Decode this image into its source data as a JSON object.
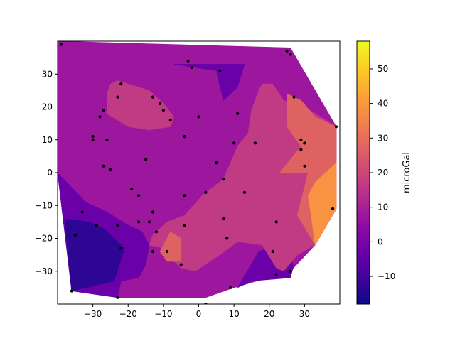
{
  "chart_data": {
    "type": "contourf",
    "title": "",
    "xlabel": "",
    "ylabel": "",
    "xlim": [
      -40,
      40
    ],
    "ylim": [
      -40,
      40
    ],
    "x_ticks": [
      -30,
      -20,
      -10,
      0,
      10,
      20,
      30
    ],
    "y_ticks": [
      -30,
      -20,
      -10,
      0,
      10,
      20,
      30
    ],
    "grid": false,
    "colormap": "plasma",
    "colorbar": {
      "label": "microGal",
      "range": [
        -18,
        58
      ],
      "ticks": [
        -10,
        0,
        10,
        20,
        30,
        40,
        50
      ]
    },
    "contour_levels": [
      -18,
      -10,
      0,
      10,
      20,
      30,
      40,
      50,
      58
    ],
    "level_colors": [
      "#2d0694",
      "#6a00a8",
      "#9c179e",
      "#c13a84",
      "#df6263",
      "#f79343",
      "#fdcb2a",
      "#f0f921"
    ],
    "regions": [
      {
        "level": 2,
        "polygon": [
          [
            -40,
            40
          ],
          [
            26,
            38
          ],
          [
            39,
            14
          ],
          [
            39,
            -11
          ],
          [
            33,
            -22
          ],
          [
            26,
            -30
          ],
          [
            10,
            -35
          ],
          [
            2,
            -38
          ],
          [
            -23,
            -38
          ],
          [
            -36,
            -36
          ],
          [
            -40,
            0
          ]
        ]
      },
      {
        "level": 1,
        "polygon": [
          [
            -40,
            0
          ],
          [
            -36,
            -36
          ],
          [
            -23,
            -38
          ],
          [
            -22,
            -33
          ],
          [
            -17,
            -32
          ],
          [
            -15,
            -28
          ],
          [
            -14,
            -22
          ],
          [
            -16,
            -18
          ],
          [
            -20,
            -16
          ],
          [
            -26,
            -12
          ],
          [
            -32,
            -9
          ]
        ]
      },
      {
        "level": 0,
        "polygon": [
          [
            -38,
            -14
          ],
          [
            -36,
            -36
          ],
          [
            -24,
            -33
          ],
          [
            -21,
            -23
          ],
          [
            -27,
            -17
          ],
          [
            -31,
            -15
          ]
        ]
      },
      {
        "level": 1,
        "polygon": [
          [
            -7,
            33
          ],
          [
            13,
            33
          ],
          [
            11,
            26
          ],
          [
            7,
            22
          ],
          [
            5,
            31
          ],
          [
            -7,
            33
          ]
        ]
      },
      {
        "level": 1,
        "polygon": [
          [
            11,
            -35
          ],
          [
            17,
            -24
          ],
          [
            22,
            -22
          ],
          [
            27,
            -28
          ],
          [
            26,
            -32
          ],
          [
            15,
            -33
          ]
        ]
      },
      {
        "level": 3,
        "polygon": [
          [
            -25,
            27
          ],
          [
            -23,
            28
          ],
          [
            -14,
            25
          ],
          [
            -10,
            21
          ],
          [
            -7,
            17
          ],
          [
            -8,
            14
          ],
          [
            -14,
            13
          ],
          [
            -20,
            14
          ],
          [
            -26,
            18
          ],
          [
            -26,
            24
          ]
        ]
      },
      {
        "level": 3,
        "polygon": [
          [
            18,
            27
          ],
          [
            21,
            27
          ],
          [
            24,
            22
          ],
          [
            30,
            20
          ],
          [
            39,
            14
          ],
          [
            39,
            -11
          ],
          [
            33,
            -22
          ],
          [
            28,
            -25
          ],
          [
            24,
            -30
          ],
          [
            22,
            -29
          ],
          [
            18,
            -22
          ],
          [
            11,
            -21
          ],
          [
            6,
            -25
          ],
          [
            -1,
            -30
          ],
          [
            -5,
            -29
          ],
          [
            -8,
            -26
          ],
          [
            -10,
            -23
          ],
          [
            -14,
            -22
          ],
          [
            -13,
            -19
          ],
          [
            -9,
            -15
          ],
          [
            -4,
            -13
          ],
          [
            1,
            -7
          ],
          [
            7,
            -2
          ],
          [
            9,
            3
          ],
          [
            11,
            8
          ],
          [
            14,
            12
          ],
          [
            15,
            19
          ],
          [
            17,
            25
          ]
        ]
      },
      {
        "level": 4,
        "polygon": [
          [
            25,
            24
          ],
          [
            29,
            22
          ],
          [
            33,
            17
          ],
          [
            39,
            14
          ],
          [
            39,
            -11
          ],
          [
            33,
            -22
          ],
          [
            28,
            -13
          ],
          [
            31,
            0
          ],
          [
            23,
            0
          ],
          [
            29,
            8
          ],
          [
            25,
            14
          ],
          [
            25,
            20
          ]
        ]
      },
      {
        "level": 4,
        "polygon": [
          [
            -11,
            -24
          ],
          [
            -8,
            -18
          ],
          [
            -5,
            -20
          ],
          [
            -5,
            -27
          ],
          [
            -9,
            -27
          ]
        ]
      },
      {
        "level": 5,
        "polygon": [
          [
            39,
            3
          ],
          [
            39,
            -11
          ],
          [
            33,
            -22
          ],
          [
            32,
            -14
          ],
          [
            31,
            -7
          ],
          [
            33,
            -3
          ]
        ]
      }
    ],
    "station_points": [
      [
        -39,
        39
      ],
      [
        -35,
        -19
      ],
      [
        -36,
        -36
      ],
      [
        -33,
        -12
      ],
      [
        -29,
        -16
      ],
      [
        -23,
        -16
      ],
      [
        -22,
        -23
      ],
      [
        -23,
        -38
      ],
      [
        -30,
        11
      ],
      [
        -30,
        10
      ],
      [
        -27,
        19
      ],
      [
        -28,
        17
      ],
      [
        -26,
        10
      ],
      [
        -23,
        23
      ],
      [
        -22,
        27
      ],
      [
        -27,
        2
      ],
      [
        -25,
        1
      ],
      [
        -19,
        -5
      ],
      [
        -17,
        -7
      ],
      [
        -17,
        -15
      ],
      [
        -15,
        4
      ],
      [
        -13,
        -24
      ],
      [
        -14,
        -15
      ],
      [
        -13,
        -12
      ],
      [
        -12,
        -18
      ],
      [
        -13,
        23
      ],
      [
        -11,
        21
      ],
      [
        -10,
        19
      ],
      [
        -8,
        16
      ],
      [
        -9,
        -24
      ],
      [
        -5,
        -28
      ],
      [
        -4,
        -16
      ],
      [
        -4,
        -7
      ],
      [
        -4,
        11
      ],
      [
        -3,
        34
      ],
      [
        -2,
        32
      ],
      [
        0,
        17
      ],
      [
        2,
        -6
      ],
      [
        5,
        3
      ],
      [
        6,
        31
      ],
      [
        7,
        -14
      ],
      [
        7,
        -2
      ],
      [
        8,
        -20
      ],
      [
        9,
        -35
      ],
      [
        10,
        9
      ],
      [
        11,
        18
      ],
      [
        13,
        -6
      ],
      [
        16,
        9
      ],
      [
        21,
        -24
      ],
      [
        22,
        -15
      ],
      [
        22,
        -31
      ],
      [
        25,
        37
      ],
      [
        26,
        -30
      ],
      [
        26,
        36
      ],
      [
        27,
        23
      ],
      [
        29,
        10
      ],
      [
        29,
        7
      ],
      [
        30,
        2
      ],
      [
        30,
        9
      ],
      [
        38,
        -11
      ],
      [
        39,
        14
      ],
      [
        2,
        -40
      ]
    ]
  }
}
